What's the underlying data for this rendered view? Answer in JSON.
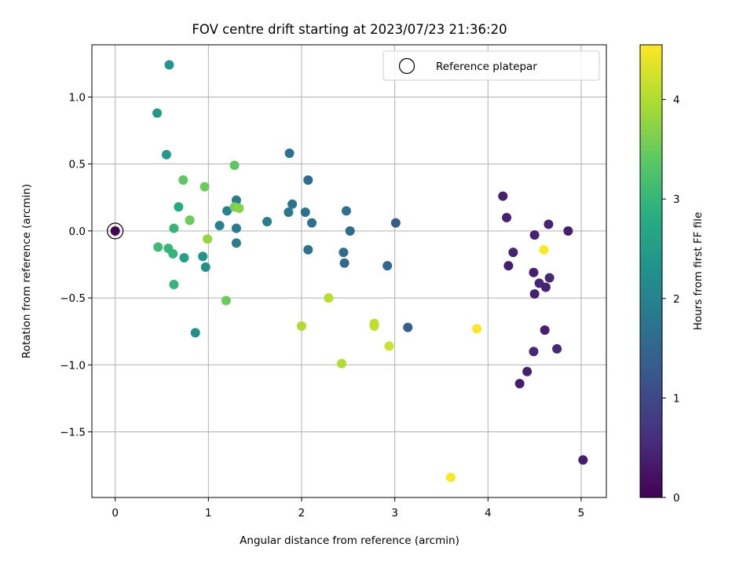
{
  "chart_data": {
    "type": "scatter",
    "title": "FOV centre drift starting at 2023/07/23 21:36:20",
    "xlabel": "Angular distance from reference (arcmin)",
    "ylabel": "Rotation from reference (arcmin)",
    "xlim": [
      -0.25,
      5.27
    ],
    "ylim": [
      -1.99,
      1.39
    ],
    "xticks": [
      0,
      1,
      2,
      3,
      4,
      5
    ],
    "xtick_labels": [
      "0",
      "1",
      "2",
      "3",
      "4",
      "5"
    ],
    "yticks": [
      1.0,
      0.5,
      0.0,
      -0.5,
      -1.0,
      -1.5
    ],
    "ytick_labels": [
      "1.0",
      "0.5",
      "0.0",
      "−0.5",
      "−1.0",
      "−1.5"
    ],
    "grid": true,
    "legend": {
      "placement": "upper-right",
      "label": "Reference platepar"
    },
    "reference_point": {
      "x": 0,
      "y": 0
    },
    "colorbar": {
      "label": "Hours from first FF file",
      "colormap": "viridis",
      "range": [
        0,
        4.55
      ],
      "ticks": [
        0,
        1,
        2,
        3,
        4
      ],
      "tick_labels": [
        "0",
        "1",
        "2",
        "3",
        "4"
      ]
    },
    "points": [
      {
        "x": 0,
        "y": 0,
        "c": 0.0
      },
      {
        "x": 4.16,
        "y": 0.26,
        "c": 0.4
      },
      {
        "x": 4.2,
        "y": 0.1,
        "c": 0.42
      },
      {
        "x": 4.22,
        "y": -0.26,
        "c": 0.35
      },
      {
        "x": 4.27,
        "y": -0.16,
        "c": 0.45
      },
      {
        "x": 4.5,
        "y": -0.03,
        "c": 0.45
      },
      {
        "x": 4.49,
        "y": -0.31,
        "c": 0.4
      },
      {
        "x": 4.5,
        "y": -0.47,
        "c": 0.42
      },
      {
        "x": 4.55,
        "y": -0.39,
        "c": 0.5
      },
      {
        "x": 4.62,
        "y": -0.42,
        "c": 0.45
      },
      {
        "x": 4.66,
        "y": -0.35,
        "c": 0.5
      },
      {
        "x": 4.65,
        "y": 0.05,
        "c": 0.45
      },
      {
        "x": 4.86,
        "y": 0.0,
        "c": 0.4
      },
      {
        "x": 4.61,
        "y": -0.74,
        "c": 0.4
      },
      {
        "x": 4.49,
        "y": -0.9,
        "c": 0.5
      },
      {
        "x": 4.74,
        "y": -0.88,
        "c": 0.5
      },
      {
        "x": 4.42,
        "y": -1.05,
        "c": 0.4
      },
      {
        "x": 4.34,
        "y": -1.14,
        "c": 0.38
      },
      {
        "x": 5.02,
        "y": -1.71,
        "c": 0.35
      },
      {
        "x": 4.6,
        "y": -0.14,
        "c": 4.55
      },
      {
        "x": 3.88,
        "y": -0.73,
        "c": 4.55
      },
      {
        "x": 3.6,
        "y": -1.84,
        "c": 4.55
      },
      {
        "x": 3.14,
        "y": -0.72,
        "c": 1.4
      },
      {
        "x": 3.01,
        "y": 0.06,
        "c": 1.35
      },
      {
        "x": 2.92,
        "y": -0.26,
        "c": 1.5
      },
      {
        "x": 2.94,
        "y": -0.86,
        "c": 4.2
      },
      {
        "x": 2.78,
        "y": -0.71,
        "c": 4.15
      },
      {
        "x": 2.78,
        "y": -0.69,
        "c": 4.1
      },
      {
        "x": 2.43,
        "y": -0.99,
        "c": 4.0
      },
      {
        "x": 2.29,
        "y": -0.5,
        "c": 4.05
      },
      {
        "x": 2.0,
        "y": -0.71,
        "c": 4.0
      },
      {
        "x": 2.52,
        "y": 0.0,
        "c": 1.6
      },
      {
        "x": 2.48,
        "y": 0.15,
        "c": 1.65
      },
      {
        "x": 2.45,
        "y": -0.16,
        "c": 1.6
      },
      {
        "x": 2.46,
        "y": -0.24,
        "c": 1.55
      },
      {
        "x": 2.07,
        "y": 0.38,
        "c": 1.6
      },
      {
        "x": 2.04,
        "y": 0.14,
        "c": 1.7
      },
      {
        "x": 2.11,
        "y": 0.06,
        "c": 1.7
      },
      {
        "x": 2.07,
        "y": -0.14,
        "c": 1.75
      },
      {
        "x": 1.9,
        "y": 0.2,
        "c": 1.75
      },
      {
        "x": 1.86,
        "y": 0.14,
        "c": 1.8
      },
      {
        "x": 1.87,
        "y": 0.58,
        "c": 1.7
      },
      {
        "x": 1.63,
        "y": 0.07,
        "c": 1.9
      },
      {
        "x": 1.3,
        "y": 0.23,
        "c": 1.9
      },
      {
        "x": 1.3,
        "y": 0.02,
        "c": 1.85
      },
      {
        "x": 1.3,
        "y": -0.09,
        "c": 1.9
      },
      {
        "x": 1.2,
        "y": 0.15,
        "c": 2.0
      },
      {
        "x": 1.12,
        "y": 0.04,
        "c": 2.0
      },
      {
        "x": 1.28,
        "y": 0.49,
        "c": 3.4
      },
      {
        "x": 1.28,
        "y": 0.18,
        "c": 3.6
      },
      {
        "x": 1.33,
        "y": 0.17,
        "c": 3.7
      },
      {
        "x": 1.19,
        "y": -0.52,
        "c": 3.5
      },
      {
        "x": 0.99,
        "y": -0.06,
        "c": 3.8
      },
      {
        "x": 0.96,
        "y": 0.33,
        "c": 3.5
      },
      {
        "x": 0.97,
        "y": -0.27,
        "c": 2.3
      },
      {
        "x": 0.94,
        "y": -0.19,
        "c": 2.35
      },
      {
        "x": 0.86,
        "y": -0.76,
        "c": 2.3
      },
      {
        "x": 0.8,
        "y": 0.08,
        "c": 3.3
      },
      {
        "x": 0.8,
        "y": 0.08,
        "c": 3.5
      },
      {
        "x": 0.73,
        "y": 0.38,
        "c": 3.4
      },
      {
        "x": 0.68,
        "y": 0.18,
        "c": 2.8
      },
      {
        "x": 0.74,
        "y": -0.2,
        "c": 2.6
      },
      {
        "x": 0.63,
        "y": 0.02,
        "c": 3.0
      },
      {
        "x": 0.62,
        "y": -0.17,
        "c": 3.0
      },
      {
        "x": 0.57,
        "y": -0.13,
        "c": 3.0
      },
      {
        "x": 0.46,
        "y": -0.12,
        "c": 3.1
      },
      {
        "x": 0.63,
        "y": -0.4,
        "c": 3.0
      },
      {
        "x": 0.55,
        "y": 0.57,
        "c": 2.4
      },
      {
        "x": 0.45,
        "y": 0.88,
        "c": 2.45
      },
      {
        "x": 0.58,
        "y": 1.24,
        "c": 2.4
      }
    ]
  }
}
